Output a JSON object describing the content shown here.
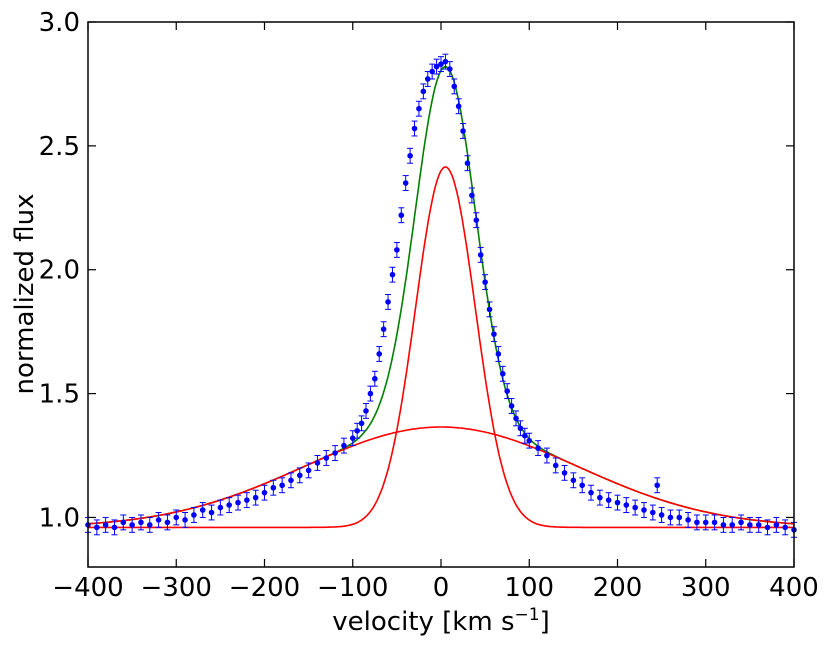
{
  "chart_data": {
    "type": "line",
    "title": "",
    "xlabel": "velocity [km s",
    "xlabel_sup": "−1",
    "xlabel_close": "]",
    "ylabel": "normalized flux",
    "xlim": [
      -400,
      400
    ],
    "ylim": [
      0.8,
      3.0
    ],
    "xticks": [
      -400,
      -300,
      -200,
      -100,
      0,
      100,
      200,
      300,
      400
    ],
    "xtick_labels": [
      "−400",
      "−300",
      "−200",
      "−100",
      "0",
      "100",
      "200",
      "300",
      "400"
    ],
    "yticks": [
      1.0,
      1.5,
      2.0,
      2.5,
      3.0
    ],
    "ytick_labels": [
      "1.0",
      "1.5",
      "2.0",
      "2.5",
      "3.0"
    ],
    "baseline": 0.96,
    "series": [
      {
        "name": "narrow gaussian component",
        "type": "gaussian",
        "color": "#ff0000",
        "center": 5,
        "amplitude": 1.455,
        "sigma": 34
      },
      {
        "name": "broad gaussian component",
        "type": "gaussian",
        "color": "#ff0000",
        "center": 0,
        "amplitude": 0.405,
        "sigma": 155
      },
      {
        "name": "total fit",
        "type": "sum",
        "color": "#008000"
      },
      {
        "name": "observed data",
        "type": "points",
        "color": "#0000ff",
        "errorbar": 0.03,
        "x": [
          -400,
          -390,
          -380,
          -370,
          -360,
          -350,
          -340,
          -330,
          -320,
          -310,
          -300,
          -290,
          -280,
          -270,
          -260,
          -250,
          -240,
          -230,
          -220,
          -210,
          -200,
          -190,
          -180,
          -170,
          -160,
          -150,
          -140,
          -130,
          -120,
          -110,
          -100,
          -95,
          -90,
          -85,
          -80,
          -75,
          -70,
          -65,
          -60,
          -55,
          -50,
          -45,
          -40,
          -35,
          -30,
          -25,
          -20,
          -15,
          -10,
          -5,
          0,
          5,
          10,
          15,
          20,
          25,
          30,
          35,
          40,
          45,
          50,
          55,
          60,
          65,
          70,
          75,
          80,
          85,
          90,
          95,
          100,
          110,
          120,
          130,
          140,
          150,
          160,
          170,
          180,
          190,
          200,
          210,
          220,
          230,
          240,
          245,
          250,
          260,
          270,
          280,
          290,
          300,
          310,
          320,
          330,
          340,
          350,
          360,
          370,
          380,
          390,
          400
        ],
        "y": [
          0.97,
          0.96,
          0.97,
          0.96,
          0.98,
          0.97,
          0.98,
          0.97,
          0.99,
          0.98,
          1.0,
          0.99,
          1.01,
          1.03,
          1.02,
          1.04,
          1.05,
          1.06,
          1.07,
          1.08,
          1.1,
          1.12,
          1.13,
          1.15,
          1.17,
          1.19,
          1.22,
          1.24,
          1.26,
          1.29,
          1.32,
          1.35,
          1.38,
          1.43,
          1.5,
          1.56,
          1.66,
          1.76,
          1.87,
          1.98,
          2.08,
          2.22,
          2.35,
          2.46,
          2.57,
          2.65,
          2.72,
          2.77,
          2.8,
          2.82,
          2.83,
          2.84,
          2.81,
          2.74,
          2.66,
          2.56,
          2.43,
          2.3,
          2.2,
          2.06,
          1.95,
          1.84,
          1.74,
          1.66,
          1.58,
          1.51,
          1.45,
          1.4,
          1.36,
          1.33,
          1.31,
          1.28,
          1.25,
          1.21,
          1.18,
          1.15,
          1.13,
          1.1,
          1.08,
          1.07,
          1.06,
          1.05,
          1.04,
          1.03,
          1.02,
          1.13,
          1.01,
          1.0,
          1.0,
          0.99,
          0.98,
          0.98,
          0.98,
          0.97,
          0.97,
          0.98,
          0.97,
          0.97,
          0.96,
          0.97,
          0.96,
          0.95
        ]
      }
    ]
  }
}
